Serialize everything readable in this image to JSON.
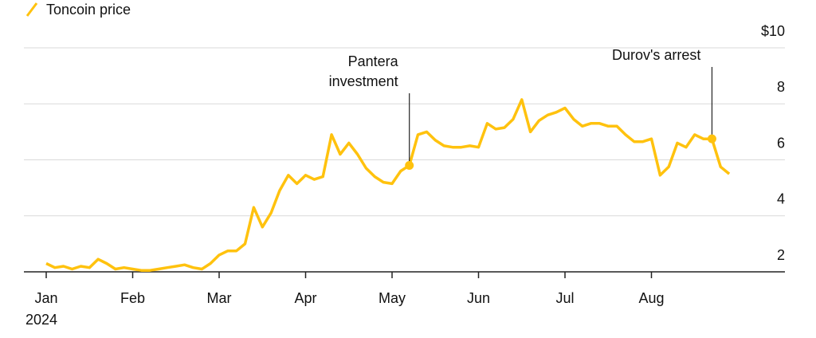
{
  "chart_data": {
    "type": "line",
    "categories": [
      "Jan",
      null,
      null,
      null,
      null,
      null,
      null,
      null,
      null,
      null,
      "Feb",
      null,
      null,
      null,
      null,
      null,
      null,
      null,
      null,
      null,
      "Mar",
      null,
      null,
      null,
      null,
      null,
      null,
      null,
      null,
      null,
      "Apr",
      null,
      null,
      null,
      null,
      null,
      null,
      null,
      null,
      null,
      "May",
      null,
      null,
      null,
      null,
      null,
      null,
      null,
      null,
      null,
      "Jun",
      null,
      null,
      null,
      null,
      null,
      null,
      null,
      null,
      null,
      "Jul",
      null,
      null,
      null,
      null,
      null,
      null,
      null,
      null,
      null,
      "Aug",
      null,
      null,
      null,
      null,
      null,
      null,
      null,
      null,
      null
    ],
    "year_label": "2024",
    "series": [
      {
        "name": "Toncoin price",
        "color": "#ffc20e",
        "values": [
          2.3,
          2.15,
          2.2,
          2.1,
          2.2,
          2.15,
          2.45,
          2.3,
          2.1,
          2.15,
          2.1,
          2.05,
          2.05,
          2.1,
          2.15,
          2.2,
          2.25,
          2.15,
          2.1,
          2.3,
          2.6,
          2.75,
          2.75,
          3.0,
          4.3,
          3.6,
          4.1,
          4.9,
          5.45,
          5.15,
          5.45,
          5.3,
          5.4,
          6.9,
          6.2,
          6.6,
          6.2,
          5.7,
          5.4,
          5.2,
          5.15,
          5.6,
          5.8,
          6.9,
          7.0,
          6.7,
          6.5,
          6.45,
          6.45,
          6.5,
          6.45,
          7.3,
          7.1,
          7.15,
          7.45,
          8.15,
          7.0,
          7.4,
          7.6,
          7.7,
          7.85,
          7.45,
          7.2,
          7.3,
          7.3,
          7.2,
          7.2,
          6.9,
          6.65,
          6.65,
          6.75,
          5.45,
          5.75,
          6.6,
          6.45,
          6.9,
          6.75,
          6.75,
          5.75,
          5.5
        ]
      }
    ],
    "ylim": [
      2,
      10
    ],
    "yticks": [
      2,
      4,
      6,
      8,
      {
        "value": 10,
        "label": "$10"
      }
    ],
    "grid": true,
    "annotations": [
      {
        "text": [
          "Pantera",
          "investment"
        ],
        "point": 42
      },
      {
        "text": [
          "Durov's arrest"
        ],
        "point": 77
      }
    ]
  }
}
